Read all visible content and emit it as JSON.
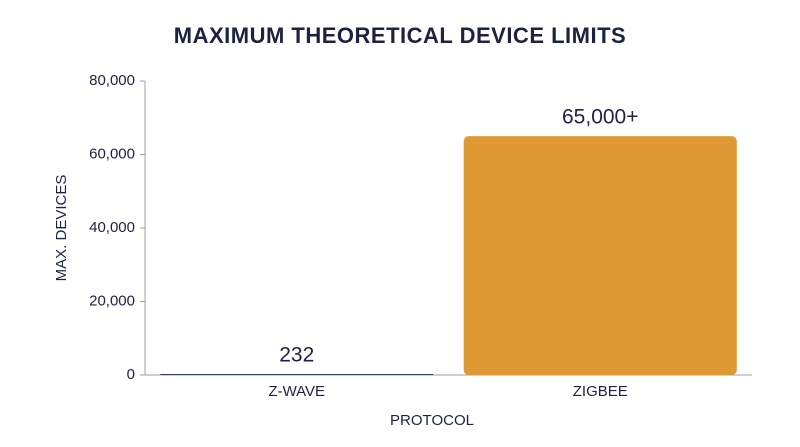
{
  "chart_data": {
    "type": "bar",
    "title": "MAXIMUM THEORETICAL DEVICE LIMITS",
    "x_label": "PROTOCOL",
    "y_label": "MAX. DEVICES",
    "categories": [
      "Z-WAVE",
      "ZIGBEE"
    ],
    "series": [
      {
        "name": "Max. devices",
        "colors": [
          "#1a2447",
          "#e09a35"
        ],
        "values": [
          232,
          65000
        ],
        "value_labels": [
          "232",
          "65,000+"
        ]
      }
    ],
    "ylim": [
      0,
      80000
    ],
    "yticks": [
      0,
      {
        "value": 20000,
        "label": "20,000"
      },
      {
        "value": 40000,
        "label": "40,000"
      },
      {
        "value": 60000,
        "label": "60,000"
      },
      {
        "value": 80000,
        "label": "80,000"
      }
    ],
    "grid": false
  }
}
